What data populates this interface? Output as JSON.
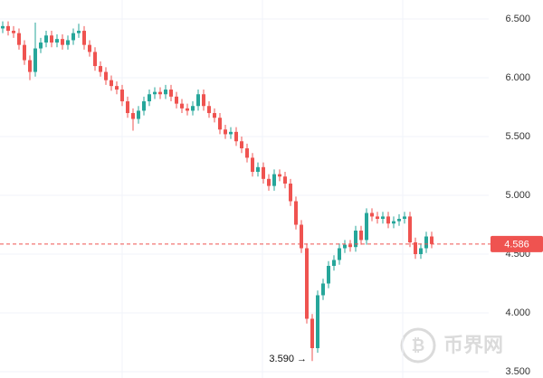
{
  "chart_data": {
    "type": "candlestick",
    "up_color": "#26a69a",
    "down_color": "#ef5350",
    "ylim": [
      3.446,
      6.662
    ],
    "yticks": [
      {
        "value": 3.5,
        "label": "3.500"
      },
      {
        "value": 4.0,
        "label": "4.000"
      },
      {
        "value": 4.5,
        "label": "4.500"
      },
      {
        "value": 5.0,
        "label": "5.000"
      },
      {
        "value": 5.5,
        "label": "5.500"
      },
      {
        "value": 6.0,
        "label": "6.000"
      },
      {
        "value": 6.5,
        "label": "6.500"
      }
    ],
    "grid": true,
    "last_price": 4.586,
    "low_label": "3.590 →",
    "low_value": 3.59,
    "watermark": "币界网",
    "open": [
      6.42,
      6.44,
      6.4,
      6.38,
      6.28,
      6.15,
      6.05,
      6.25,
      6.3,
      6.36,
      6.3,
      6.33,
      6.28,
      6.32,
      6.38,
      6.4,
      6.28,
      6.22,
      6.1,
      6.05,
      5.98,
      5.93,
      5.9,
      5.8,
      5.7,
      5.65,
      5.72,
      5.8,
      5.86,
      5.88,
      5.86,
      5.9,
      5.84,
      5.78,
      5.74,
      5.72,
      5.76,
      5.86,
      5.76,
      5.7,
      5.66,
      5.56,
      5.52,
      5.54,
      5.46,
      5.4,
      5.32,
      5.2,
      5.24,
      5.14,
      5.08,
      5.18,
      5.16,
      5.1,
      4.95,
      4.75,
      4.55,
      3.95,
      3.7,
      4.15,
      4.25,
      4.4,
      4.45,
      4.55,
      4.58,
      4.56,
      4.7,
      4.62,
      4.85,
      4.82,
      4.8,
      4.82,
      4.76,
      4.78,
      4.8,
      4.82,
      4.6,
      4.5,
      4.55,
      4.65
    ],
    "high": [
      6.48,
      6.48,
      6.44,
      6.42,
      6.32,
      6.19,
      6.47,
      6.34,
      6.4,
      6.4,
      6.37,
      6.37,
      6.36,
      6.42,
      6.46,
      6.44,
      6.32,
      6.26,
      6.14,
      6.09,
      6.02,
      5.97,
      5.94,
      5.84,
      5.74,
      5.76,
      5.84,
      5.9,
      5.92,
      5.92,
      5.94,
      5.94,
      5.88,
      5.82,
      5.78,
      5.8,
      5.9,
      5.9,
      5.8,
      5.74,
      5.7,
      5.6,
      5.58,
      5.58,
      5.5,
      5.44,
      5.36,
      5.28,
      5.28,
      5.18,
      5.22,
      5.22,
      5.2,
      5.14,
      4.99,
      4.79,
      4.59,
      3.99,
      4.19,
      4.29,
      4.44,
      4.49,
      4.59,
      4.62,
      4.62,
      4.74,
      4.74,
      4.89,
      4.89,
      4.86,
      4.86,
      4.86,
      4.82,
      4.84,
      4.86,
      4.86,
      4.64,
      4.59,
      4.69,
      4.69
    ],
    "low": [
      6.38,
      6.36,
      6.34,
      6.24,
      6.11,
      5.98,
      6.01,
      6.21,
      6.26,
      6.26,
      6.26,
      6.24,
      6.24,
      6.28,
      6.34,
      6.24,
      6.18,
      6.06,
      6.01,
      5.94,
      5.89,
      5.86,
      5.76,
      5.66,
      5.55,
      5.61,
      5.68,
      5.76,
      5.82,
      5.82,
      5.82,
      5.8,
      5.74,
      5.7,
      5.68,
      5.68,
      5.72,
      5.72,
      5.66,
      5.62,
      5.52,
      5.48,
      5.48,
      5.42,
      5.36,
      5.28,
      5.16,
      5.16,
      5.1,
      5.04,
      5.04,
      5.12,
      5.06,
      4.91,
      4.71,
      4.51,
      3.91,
      3.59,
      3.66,
      4.11,
      4.21,
      4.36,
      4.41,
      4.51,
      4.52,
      4.52,
      4.58,
      4.58,
      4.78,
      4.76,
      4.76,
      4.72,
      4.72,
      4.74,
      4.76,
      4.56,
      4.46,
      4.46,
      4.51,
      4.55
    ],
    "close": [
      6.44,
      6.4,
      6.38,
      6.28,
      6.15,
      6.05,
      6.25,
      6.3,
      6.36,
      6.3,
      6.33,
      6.28,
      6.32,
      6.38,
      6.4,
      6.28,
      6.22,
      6.1,
      6.05,
      5.98,
      5.93,
      5.9,
      5.8,
      5.7,
      5.65,
      5.72,
      5.8,
      5.86,
      5.88,
      5.86,
      5.9,
      5.84,
      5.78,
      5.74,
      5.72,
      5.76,
      5.86,
      5.76,
      5.7,
      5.66,
      5.56,
      5.52,
      5.54,
      5.46,
      5.4,
      5.32,
      5.2,
      5.24,
      5.14,
      5.08,
      5.18,
      5.16,
      5.1,
      4.95,
      4.75,
      4.55,
      3.95,
      3.7,
      4.15,
      4.25,
      4.4,
      4.45,
      4.55,
      4.58,
      4.56,
      4.7,
      4.62,
      4.85,
      4.82,
      4.8,
      4.82,
      4.76,
      4.78,
      4.8,
      4.82,
      4.6,
      4.5,
      4.55,
      4.65,
      4.586
    ]
  }
}
